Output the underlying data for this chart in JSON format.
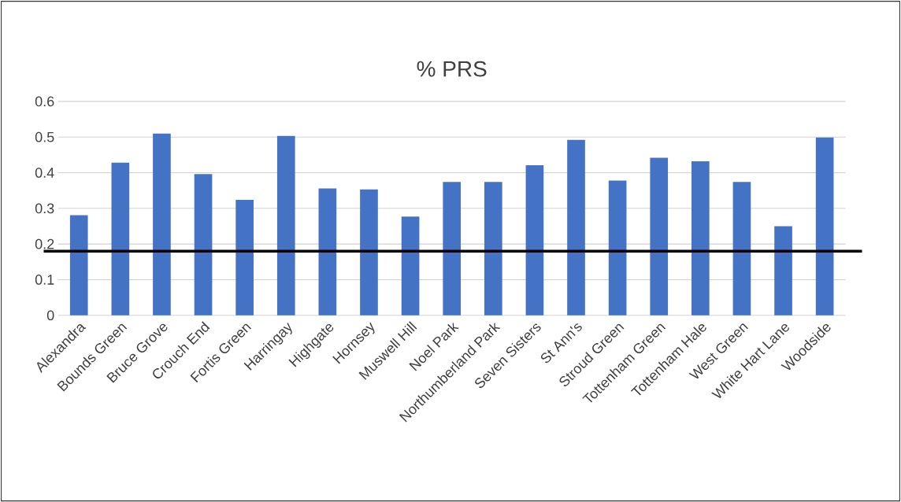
{
  "chart_data": {
    "type": "bar",
    "title": "% PRS",
    "categories": [
      "Alexandra",
      "Bounds Green",
      "Bruce Grove",
      "Crouch End",
      "Fortis Green",
      "Harringay",
      "Highgate",
      "Hornsey",
      "Muswell Hill",
      "Noel Park",
      "Northumberland Park",
      "Seven Sisters",
      "St Ann's",
      "Stroud Green",
      "Tottenham Green",
      "Tottenham Hale",
      "West Green",
      "White Hart Lane",
      "Woodside"
    ],
    "values": [
      0.281,
      0.428,
      0.51,
      0.396,
      0.324,
      0.503,
      0.356,
      0.353,
      0.277,
      0.374,
      0.374,
      0.421,
      0.492,
      0.378,
      0.442,
      0.432,
      0.374,
      0.25,
      0.499
    ],
    "color": "#4472c4",
    "ylim": [
      0,
      0.6
    ],
    "yticks": [
      0,
      0.1,
      0.2,
      0.3,
      0.4,
      0.5,
      0.6
    ],
    "grid": "y",
    "ref_lines": [
      {
        "axis": "y",
        "value": 0.18,
        "color": "#000000"
      }
    ]
  }
}
